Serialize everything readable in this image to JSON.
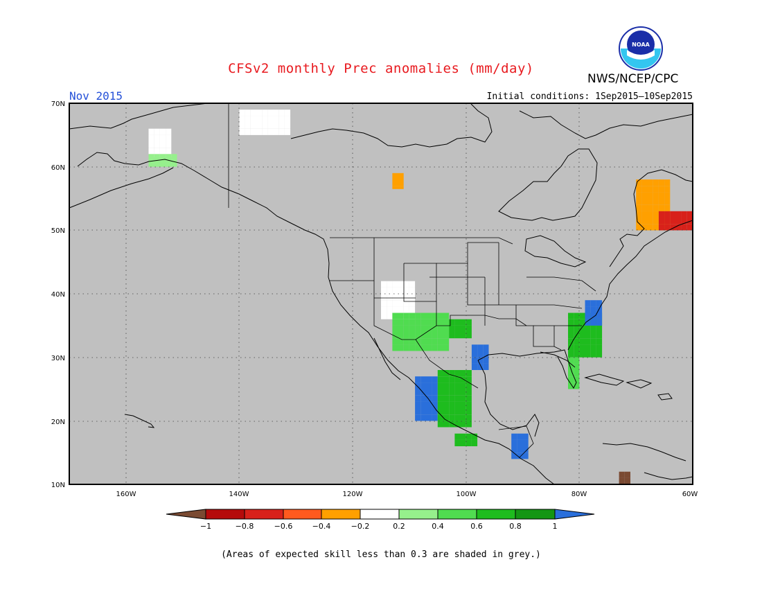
{
  "header": {
    "title": "CFSv2 monthly Prec anomalies (mm/day)",
    "agency": "NWS/NCEP/CPC",
    "logo_text": "NOAA",
    "month": "Nov 2015",
    "initial_conditions": "Initial conditions: 1Sep2015–10Sep2015"
  },
  "map": {
    "projection": "lon-lat",
    "lon_range": [
      -170,
      -60
    ],
    "lat_range": [
      10,
      70
    ],
    "lat_ticks": [
      "70N",
      "60N",
      "50N",
      "40N",
      "30N",
      "20N",
      "10N"
    ],
    "lon_ticks": [
      "160W",
      "140W",
      "120W",
      "100W",
      "80W",
      "60W"
    ],
    "background_color": "#c0c0c0",
    "grid": "dotted"
  },
  "colorbar": {
    "labels": [
      "−1",
      "−0.8",
      "−0.6",
      "−0.4",
      "−0.2",
      "0.2",
      "0.4",
      "0.6",
      "0.8",
      "1"
    ],
    "colors": [
      "#7a4a32",
      "#b50b0b",
      "#d8211a",
      "#ff5a1e",
      "#ffa000",
      "#ffffff",
      "#96f08c",
      "#50dc50",
      "#1ebc1e",
      "#149614",
      "#2a6fdb"
    ]
  },
  "anomaly_regions": [
    {
      "name": "Alaska north slope",
      "category": "near-normal",
      "color": "#ffffff",
      "lon": [
        -156,
        -152
      ],
      "lat": [
        61.5,
        66
      ]
    },
    {
      "name": "Southern Alaska",
      "category": "0.2 to 0.4",
      "color": "#96f08c",
      "lon": [
        -156,
        -151
      ],
      "lat": [
        60,
        62
      ]
    },
    {
      "name": "Beaufort coast",
      "category": "near-normal",
      "color": "#ffffff",
      "lon": [
        -140,
        -131
      ],
      "lat": [
        65,
        69
      ]
    },
    {
      "name": "Hudson Bay west",
      "category": "-0.4 to -0.2",
      "color": "#ffa000",
      "lon": [
        -113,
        -111
      ],
      "lat": [
        56.5,
        59
      ]
    },
    {
      "name": "Labrador",
      "category": "-0.4 to -0.2",
      "color": "#ffa000",
      "lon": [
        -70,
        -64
      ],
      "lat": [
        50,
        58
      ]
    },
    {
      "name": "Newfoundland",
      "category": "-0.8 to -0.6",
      "color": "#d8211a",
      "lon": [
        -66,
        -60
      ],
      "lat": [
        50,
        53
      ]
    },
    {
      "name": "Great Basin",
      "category": "near-normal",
      "color": "#ffffff",
      "lon": [
        -115,
        -109
      ],
      "lat": [
        36,
        42
      ]
    },
    {
      "name": "Four Corners",
      "category": "0.4 to 0.6",
      "color": "#50dc50",
      "lon": [
        -113,
        -103
      ],
      "lat": [
        31,
        37
      ]
    },
    {
      "name": "Southern Plains",
      "category": "0.6 to 0.8",
      "color": "#1ebc1e",
      "lon": [
        -103,
        -99
      ],
      "lat": [
        33,
        36
      ]
    },
    {
      "name": "Texas",
      "category": "above 1",
      "color": "#2a6fdb",
      "lon": [
        -99,
        -96
      ],
      "lat": [
        28,
        32
      ]
    },
    {
      "name": "Southeast coast",
      "category": "0.6 to 0.8",
      "color": "#1ebc1e",
      "lon": [
        -82,
        -76
      ],
      "lat": [
        30,
        37
      ]
    },
    {
      "name": "Mid-Atlantic",
      "category": "above 1",
      "color": "#2a6fdb",
      "lon": [
        -79,
        -76
      ],
      "lat": [
        35,
        39
      ]
    },
    {
      "name": "Florida",
      "category": "0.4 to 0.6",
      "color": "#50dc50",
      "lon": [
        -82,
        -80
      ],
      "lat": [
        25,
        30
      ]
    },
    {
      "name": "Mexico Sierra Madre",
      "category": "above 1",
      "color": "#2a6fdb",
      "lon": [
        -109,
        -105
      ],
      "lat": [
        20,
        27
      ]
    },
    {
      "name": "Central Mexico",
      "category": "0.6 to 0.8",
      "color": "#1ebc1e",
      "lon": [
        -105,
        -99
      ],
      "lat": [
        19,
        28
      ]
    },
    {
      "name": "Southern Mexico",
      "category": "0.6 to 0.8",
      "color": "#1ebc1e",
      "lon": [
        -102,
        -98
      ],
      "lat": [
        16,
        18
      ]
    },
    {
      "name": "Central America",
      "category": "above 1",
      "color": "#2a6fdb",
      "lon": [
        -92,
        -89
      ],
      "lat": [
        14,
        18
      ]
    },
    {
      "name": "Caribbean south",
      "category": "below -1",
      "color": "#7a4a32",
      "lon": [
        -73,
        -71
      ],
      "lat": [
        10,
        12
      ]
    }
  ],
  "footnote": "(Areas of expected skill less than 0.3 are shaded in grey.)"
}
